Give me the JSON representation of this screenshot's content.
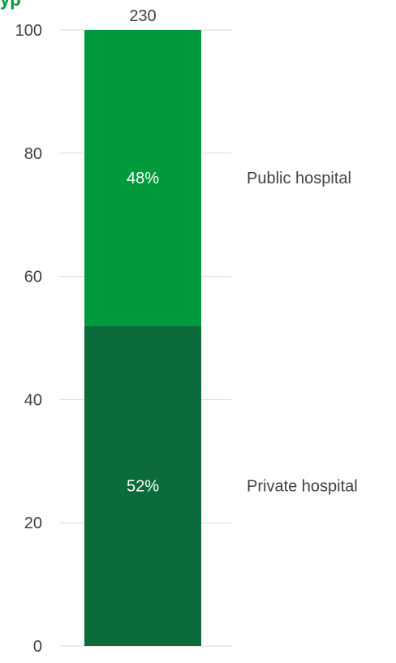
{
  "title_fragment": "yp",
  "chart_data": {
    "type": "bar",
    "stacked": true,
    "categories": [
      ""
    ],
    "total_label": "230",
    "ylim": [
      0,
      100
    ],
    "yticks": [
      0,
      20,
      40,
      60,
      80,
      100
    ],
    "grid": true,
    "series": [
      {
        "name": "Private hospital",
        "values": [
          52
        ],
        "label": "52%",
        "color": "#0b6b3a"
      },
      {
        "name": "Public hospital",
        "values": [
          48
        ],
        "label": "48%",
        "color": "#009a3d"
      }
    ],
    "colors": {
      "title": "#009a3d",
      "grid": "#d9d9d9",
      "axis_text": "#404040",
      "bar_label": "#ffffff"
    }
  }
}
